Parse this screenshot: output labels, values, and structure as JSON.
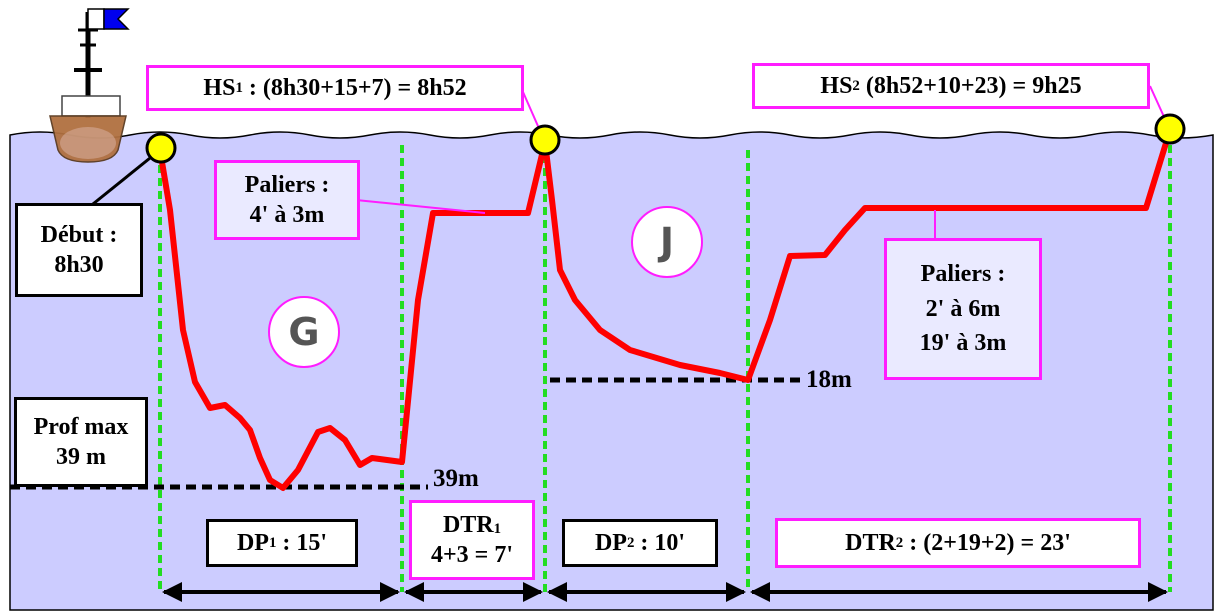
{
  "start_box": {
    "line1": "Début :",
    "line2": "8h30"
  },
  "max_depth_box": {
    "line1": "Prof max",
    "line2": "39 m"
  },
  "hs1": {
    "label": "HS",
    "sub": "1",
    "rest": " : (8h30+15+7) = 8h52"
  },
  "hs2": {
    "label": "HS",
    "sub": "2",
    "rest": " (8h52+10+23) = 9h25"
  },
  "stops1": {
    "line1": "Paliers :",
    "line2": "4' à 3m"
  },
  "stops2": {
    "line1": "Paliers :",
    "line2": "2' à 6m",
    "line3": "19' à 3m"
  },
  "letter_dive1": "G",
  "letter_dive2": "J",
  "depth_39": "39m",
  "depth_18": "18m",
  "dp1": {
    "label": "DP",
    "sub": "1",
    "rest": " : 15'"
  },
  "dtr1": {
    "label": "DTR",
    "sub": "1",
    "line2": "4+3 = 7'"
  },
  "dp2": {
    "label": "DP",
    "sub": "2",
    "rest": " : 10'"
  },
  "dtr2": {
    "label": "DTR",
    "sub": "2",
    "rest": " : (2+19+2) = 23'"
  },
  "colors": {
    "water": "#ccccff",
    "profile": "#ff0000",
    "marker": "#ffff00",
    "grid": "#22dd22",
    "box_border_pink": "#ff1cff",
    "boat_hull": "#b07040"
  }
}
